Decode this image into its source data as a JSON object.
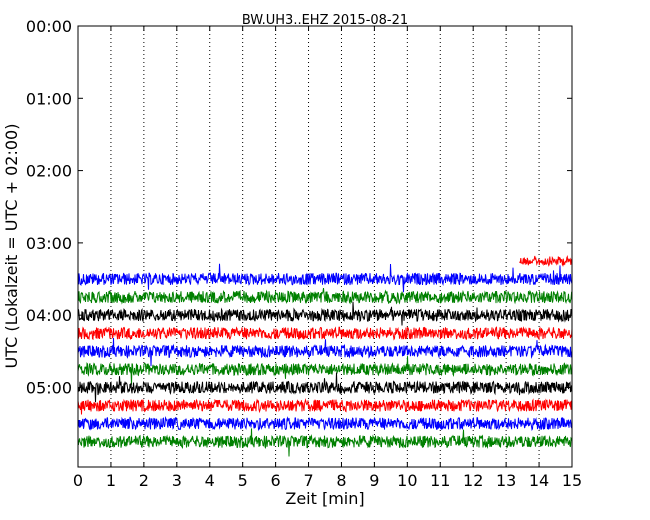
{
  "chart_data": {
    "type": "line",
    "title": "BW.UH3..EHZ 2015-08-21",
    "xlabel": "Zeit  [min]",
    "ylabel": "UTC (Lokalzeit = UTC + 02:00)",
    "xlim": [
      0,
      15
    ],
    "ylim_hours": [
      0,
      6.1
    ],
    "xticks": [
      "0",
      "1",
      "2",
      "3",
      "4",
      "5",
      "6",
      "7",
      "8",
      "9",
      "10",
      "11",
      "12",
      "13",
      "14",
      "15"
    ],
    "yticks": [
      {
        "label": "00:00",
        "hour": 0
      },
      {
        "label": "01:00",
        "hour": 1
      },
      {
        "label": "02:00",
        "hour": 2
      },
      {
        "label": "03:00",
        "hour": 3
      },
      {
        "label": "04:00",
        "hour": 4
      },
      {
        "label": "05:00",
        "hour": 5
      }
    ],
    "grid": "vertical dotted",
    "colors": [
      "#ff0000",
      "#0000ff",
      "#008000",
      "#000000"
    ],
    "traces": [
      {
        "start_hour": 3.25,
        "x_start": 13.4,
        "x_end": 15,
        "color": "#ff0000"
      },
      {
        "start_hour": 3.5,
        "x_start": 0,
        "x_end": 15,
        "color": "#0000ff"
      },
      {
        "start_hour": 3.75,
        "x_start": 0,
        "x_end": 15,
        "color": "#008000"
      },
      {
        "start_hour": 4.0,
        "x_start": 0,
        "x_end": 15,
        "color": "#000000"
      },
      {
        "start_hour": 4.25,
        "x_start": 0,
        "x_end": 15,
        "color": "#ff0000"
      },
      {
        "start_hour": 4.5,
        "x_start": 0,
        "x_end": 15,
        "color": "#0000ff"
      },
      {
        "start_hour": 4.75,
        "x_start": 0,
        "x_end": 15,
        "color": "#008000"
      },
      {
        "start_hour": 5.0,
        "x_start": 0,
        "x_end": 15,
        "color": "#000000"
      },
      {
        "start_hour": 5.25,
        "x_start": 0,
        "x_end": 15,
        "color": "#ff0000"
      },
      {
        "start_hour": 5.5,
        "x_start": 0,
        "x_end": 15,
        "color": "#0000ff"
      },
      {
        "start_hour": 5.75,
        "x_start": 0,
        "x_end": 15,
        "color": "#008000"
      }
    ]
  }
}
